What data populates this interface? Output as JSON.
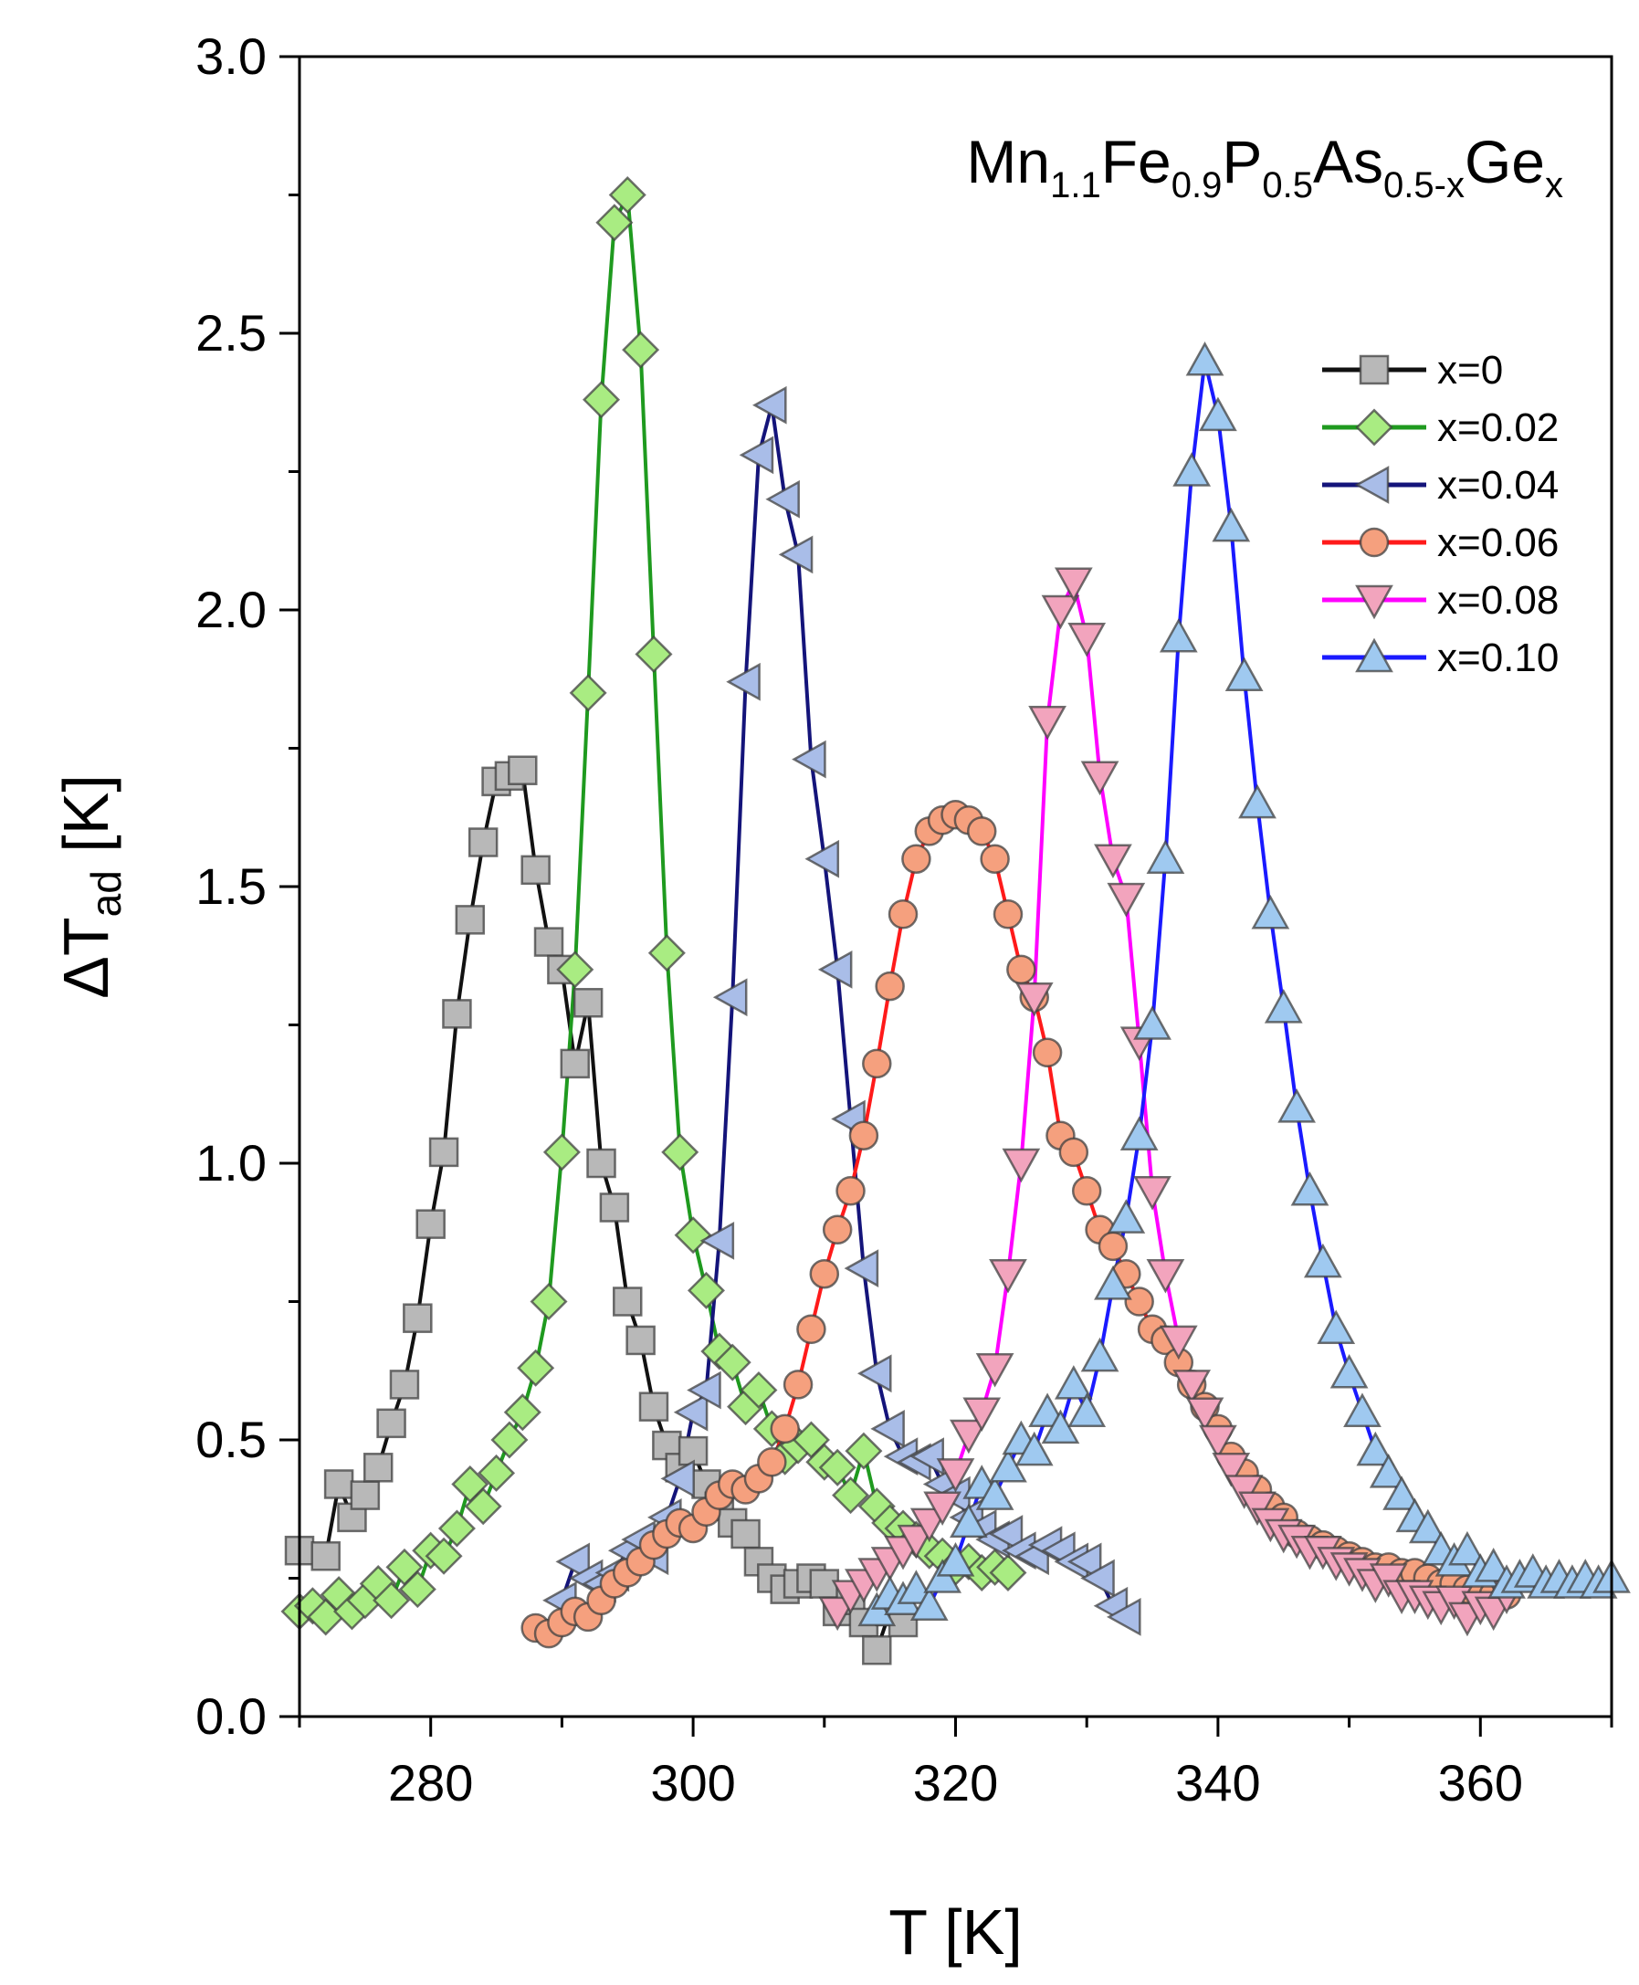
{
  "chart_data": {
    "type": "line",
    "title": "",
    "annotation": {
      "parts": [
        {
          "t": "Mn",
          "sub": false
        },
        {
          "t": "1.1",
          "sub": true
        },
        {
          "t": "Fe",
          "sub": false
        },
        {
          "t": "0.9",
          "sub": true
        },
        {
          "t": "P",
          "sub": false
        },
        {
          "t": "0.5",
          "sub": true
        },
        {
          "t": "As",
          "sub": false
        },
        {
          "t": "0.5-x",
          "sub": true
        },
        {
          "t": "Ge",
          "sub": false
        },
        {
          "t": "x",
          "sub": true
        }
      ]
    },
    "xlabel": "T [K]",
    "ylabel": {
      "main": "ΔT",
      "sub": "ad",
      "suffix": " [K]"
    },
    "xlim": [
      270,
      370
    ],
    "ylim": [
      0.0,
      3.0
    ],
    "xticks": [
      280,
      300,
      320,
      340,
      360
    ],
    "xtick_labels": [
      "280",
      "300",
      "320",
      "340",
      "360"
    ],
    "yticks": [
      0.0,
      0.5,
      1.0,
      1.5,
      2.0,
      2.5,
      3.0
    ],
    "ytick_labels": [
      "0.0",
      "0.5",
      "1.0",
      "1.5",
      "2.0",
      "2.5",
      "3.0"
    ],
    "legend_position": "top-right",
    "series": [
      {
        "name": "x=0",
        "line": "#111111",
        "marker": "square",
        "fill": "#b8b8b8",
        "x": [
          270,
          272,
          273,
          274,
          275,
          276,
          277,
          278,
          279,
          280,
          281,
          282,
          283,
          284,
          285,
          286,
          287,
          288,
          289,
          290,
          291,
          292,
          293,
          294,
          295,
          296,
          297,
          298,
          299,
          300,
          301,
          302,
          303,
          304,
          305,
          306,
          307,
          308,
          309,
          310,
          311,
          312,
          313,
          314,
          315,
          316
        ],
        "y": [
          0.3,
          0.29,
          0.42,
          0.36,
          0.4,
          0.45,
          0.53,
          0.6,
          0.72,
          0.89,
          1.02,
          1.27,
          1.44,
          1.58,
          1.69,
          1.7,
          1.71,
          1.53,
          1.4,
          1.35,
          1.18,
          1.29,
          1.0,
          0.92,
          0.75,
          0.68,
          0.56,
          0.49,
          0.45,
          0.48,
          0.42,
          0.38,
          0.35,
          0.33,
          0.28,
          0.25,
          0.23,
          0.24,
          0.25,
          0.24,
          0.19,
          0.21,
          0.17,
          0.12,
          0.19,
          0.17
        ]
      },
      {
        "name": "x=0.02",
        "line": "#1f9a1f",
        "marker": "diamond",
        "fill": "#a9ec82",
        "x": [
          270,
          271,
          272,
          273,
          274,
          275,
          276,
          277,
          278,
          279,
          280,
          281,
          282,
          283,
          284,
          285,
          286,
          287,
          288,
          289,
          290,
          291,
          292,
          293,
          294,
          295,
          296,
          297,
          298,
          299,
          300,
          301,
          302,
          303,
          304,
          305,
          306,
          307,
          308,
          309,
          310,
          311,
          312,
          313,
          314,
          315,
          316,
          317,
          318,
          319,
          320,
          321,
          322,
          323,
          324
        ],
        "y": [
          0.19,
          0.2,
          0.18,
          0.22,
          0.19,
          0.21,
          0.24,
          0.21,
          0.27,
          0.23,
          0.3,
          0.29,
          0.34,
          0.42,
          0.38,
          0.44,
          0.5,
          0.55,
          0.63,
          0.75,
          1.02,
          1.35,
          1.85,
          2.38,
          2.7,
          2.75,
          2.47,
          1.92,
          1.38,
          1.02,
          0.87,
          0.77,
          0.66,
          0.64,
          0.56,
          0.59,
          0.52,
          0.47,
          0.49,
          0.5,
          0.46,
          0.45,
          0.4,
          0.48,
          0.38,
          0.35,
          0.34,
          0.32,
          0.3,
          0.29,
          0.27,
          0.28,
          0.26,
          0.27,
          0.26
        ]
      },
      {
        "name": "x=0.04",
        "line": "#14147a",
        "marker": "triangle-left",
        "fill": "#a9bde8",
        "x": [
          290,
          291,
          292,
          293,
          294,
          295,
          296,
          297,
          298,
          299,
          300,
          301,
          302,
          303,
          304,
          305,
          306,
          307,
          308,
          309,
          310,
          311,
          312,
          313,
          314,
          315,
          316,
          317,
          318,
          319,
          320,
          321,
          322,
          323,
          324,
          325,
          326,
          327,
          328,
          329,
          330,
          331,
          332,
          333
        ],
        "y": [
          0.21,
          0.28,
          0.25,
          0.24,
          0.26,
          0.3,
          0.32,
          0.29,
          0.36,
          0.43,
          0.55,
          0.59,
          0.86,
          1.3,
          1.87,
          2.28,
          2.37,
          2.2,
          2.1,
          1.73,
          1.55,
          1.35,
          1.08,
          0.81,
          0.62,
          0.52,
          0.47,
          0.46,
          0.47,
          0.42,
          0.4,
          0.36,
          0.34,
          0.32,
          0.33,
          0.3,
          0.29,
          0.31,
          0.3,
          0.28,
          0.28,
          0.25,
          0.2,
          0.18
        ]
      },
      {
        "name": "x=0.06",
        "line": "#ff1a1a",
        "marker": "circle",
        "fill": "#f5a07e",
        "x": [
          288,
          289,
          290,
          291,
          292,
          293,
          294,
          295,
          296,
          297,
          298,
          299,
          300,
          301,
          302,
          303,
          304,
          305,
          306,
          307,
          308,
          309,
          310,
          311,
          312,
          313,
          314,
          315,
          316,
          317,
          318,
          319,
          320,
          321,
          322,
          323,
          324,
          325,
          326,
          327,
          328,
          329,
          330,
          331,
          332,
          333,
          334,
          335,
          336,
          337,
          338,
          339,
          340,
          341,
          342,
          343,
          344,
          345,
          346,
          347,
          348,
          349,
          350,
          351,
          352,
          353,
          354,
          355,
          356,
          357,
          358,
          359,
          360,
          361,
          362
        ],
        "y": [
          0.16,
          0.15,
          0.17,
          0.19,
          0.18,
          0.21,
          0.24,
          0.26,
          0.28,
          0.31,
          0.33,
          0.35,
          0.34,
          0.37,
          0.4,
          0.42,
          0.41,
          0.43,
          0.46,
          0.52,
          0.6,
          0.7,
          0.8,
          0.88,
          0.95,
          1.05,
          1.18,
          1.32,
          1.45,
          1.55,
          1.6,
          1.62,
          1.63,
          1.62,
          1.6,
          1.55,
          1.45,
          1.35,
          1.3,
          1.2,
          1.05,
          1.02,
          0.95,
          0.88,
          0.85,
          0.8,
          0.75,
          0.7,
          0.68,
          0.64,
          0.6,
          0.56,
          0.52,
          0.47,
          0.44,
          0.41,
          0.38,
          0.36,
          0.33,
          0.32,
          0.31,
          0.3,
          0.29,
          0.28,
          0.27,
          0.27,
          0.26,
          0.26,
          0.25,
          0.24,
          0.24,
          0.23,
          0.23,
          0.22,
          0.22
        ]
      },
      {
        "name": "x=0.08",
        "line": "#ff00ff",
        "marker": "triangle-down",
        "fill": "#f2a4bd",
        "x": [
          311,
          312,
          313,
          314,
          315,
          316,
          317,
          318,
          319,
          320,
          321,
          322,
          323,
          324,
          325,
          326,
          327,
          328,
          329,
          330,
          331,
          332,
          333,
          334,
          335,
          336,
          337,
          338,
          339,
          340,
          341,
          342,
          343,
          344,
          345,
          346,
          347,
          348,
          349,
          350,
          351,
          352,
          353,
          354,
          355,
          356,
          357,
          358,
          359,
          360,
          361,
          362
        ],
        "y": [
          0.19,
          0.22,
          0.24,
          0.26,
          0.28,
          0.3,
          0.32,
          0.35,
          0.38,
          0.44,
          0.51,
          0.55,
          0.63,
          0.8,
          1.0,
          1.3,
          1.8,
          2.0,
          2.05,
          1.95,
          1.7,
          1.55,
          1.48,
          1.22,
          0.95,
          0.8,
          0.68,
          0.6,
          0.55,
          0.5,
          0.45,
          0.41,
          0.38,
          0.35,
          0.33,
          0.32,
          0.3,
          0.3,
          0.28,
          0.27,
          0.26,
          0.24,
          0.25,
          0.22,
          0.22,
          0.21,
          0.2,
          0.21,
          0.18,
          0.2,
          0.19,
          0.22
        ]
      },
      {
        "name": "x=0.10",
        "line": "#1a1aff",
        "marker": "triangle-up",
        "fill": "#9fc9f0",
        "x": [
          314,
          315,
          316,
          317,
          318,
          319,
          320,
          321,
          322,
          323,
          324,
          325,
          326,
          327,
          328,
          329,
          330,
          331,
          332,
          333,
          334,
          335,
          336,
          337,
          338,
          339,
          340,
          341,
          342,
          343,
          344,
          345,
          346,
          347,
          348,
          349,
          350,
          351,
          352,
          353,
          354,
          355,
          356,
          357,
          358,
          359,
          360,
          361,
          362,
          363,
          364,
          365,
          366,
          367,
          368,
          369,
          370
        ],
        "y": [
          0.19,
          0.22,
          0.21,
          0.23,
          0.2,
          0.25,
          0.28,
          0.35,
          0.42,
          0.4,
          0.45,
          0.5,
          0.48,
          0.55,
          0.52,
          0.6,
          0.55,
          0.65,
          0.78,
          0.9,
          1.05,
          1.25,
          1.55,
          1.95,
          2.25,
          2.45,
          2.35,
          2.15,
          1.88,
          1.65,
          1.45,
          1.28,
          1.1,
          0.95,
          0.82,
          0.7,
          0.62,
          0.55,
          0.48,
          0.44,
          0.4,
          0.36,
          0.34,
          0.3,
          0.28,
          0.3,
          0.26,
          0.27,
          0.24,
          0.25,
          0.26,
          0.24,
          0.25,
          0.24,
          0.25,
          0.24,
          0.25
        ]
      }
    ]
  }
}
